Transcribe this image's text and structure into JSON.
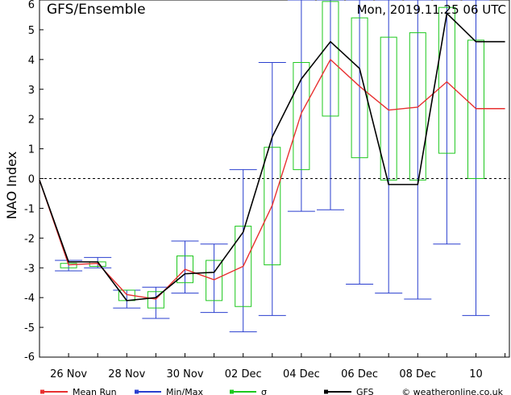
{
  "header": {
    "model_title": "GFS/Ensemble",
    "run_info": "Mon, 2019.11.25   06 UTC"
  },
  "legend": {
    "mean_run": "Mean Run",
    "min_max": "Min/Max",
    "sigma": "σ",
    "gfs": "GFS",
    "copyright": "© weatheronline.co.uk"
  },
  "colors": {
    "mean_run": "#e83030",
    "min_max": "#2a3fcf",
    "sigma": "#1ec81e",
    "gfs": "#000000"
  },
  "chart_data": {
    "type": "line",
    "title": "",
    "ylabel": "NAO Index",
    "xlabel": "",
    "ylim": [
      -6,
      6
    ],
    "xlim": [
      0,
      16.15
    ],
    "yticks": [
      -6,
      -5,
      -4,
      -3,
      -2,
      -1,
      0,
      1,
      2,
      3,
      4,
      5,
      6
    ],
    "xticks": [
      {
        "x": 1,
        "label": "26 Nov"
      },
      {
        "x": 3,
        "label": "28 Nov"
      },
      {
        "x": 5,
        "label": "30 Nov"
      },
      {
        "x": 7,
        "label": "02 Dec"
      },
      {
        "x": 9,
        "label": "04 Dec"
      },
      {
        "x": 11,
        "label": "06 Dec"
      },
      {
        "x": 13,
        "label": "08 Dec"
      },
      {
        "x": 15,
        "label": "10"
      }
    ],
    "x": [
      0,
      1,
      2,
      3,
      4,
      5,
      6,
      7,
      8,
      9,
      10,
      11,
      12,
      13,
      14,
      15,
      16
    ],
    "series": [
      {
        "name": "Mean Run",
        "values": [
          -0.05,
          -2.9,
          -2.85,
          -3.9,
          -4.05,
          -3.05,
          -3.4,
          -2.95,
          -0.9,
          2.2,
          4.0,
          3.1,
          2.3,
          2.4,
          3.25,
          2.35,
          2.35
        ]
      },
      {
        "name": "GFS",
        "values": [
          -0.05,
          -2.8,
          -2.8,
          -4.1,
          -4.0,
          -3.2,
          -3.15,
          -1.8,
          1.4,
          3.35,
          4.6,
          3.7,
          -0.2,
          -0.2,
          5.55,
          4.6,
          4.6
        ]
      }
    ],
    "min_max": [
      {
        "x": 1,
        "min": -3.1,
        "max": -2.75
      },
      {
        "x": 2,
        "min": -3.0,
        "max": -2.65
      },
      {
        "x": 3,
        "min": -4.35,
        "max": -3.75
      },
      {
        "x": 4,
        "min": -4.7,
        "max": -3.65
      },
      {
        "x": 5,
        "min": -3.85,
        "max": -2.1
      },
      {
        "x": 6,
        "min": -4.5,
        "max": -2.2
      },
      {
        "x": 7,
        "min": -5.15,
        "max": 0.3
      },
      {
        "x": 8,
        "min": -4.6,
        "max": 3.9
      },
      {
        "x": 9,
        "min": -1.1,
        "max": 6.0
      },
      {
        "x": 10,
        "min": -1.05,
        "max": 6.0
      },
      {
        "x": 11,
        "min": -3.55,
        "max": 6.0
      },
      {
        "x": 12,
        "min": -3.85,
        "max": 6.0
      },
      {
        "x": 13,
        "min": -4.05,
        "max": 6.0
      },
      {
        "x": 14,
        "min": -2.2,
        "max": 6.0
      },
      {
        "x": 15,
        "min": -4.6,
        "max": 6.0
      }
    ],
    "sigma": [
      {
        "x": 1,
        "low": -3.0,
        "high": -2.85
      },
      {
        "x": 2,
        "low": -2.95,
        "high": -2.8
      },
      {
        "x": 3,
        "low": -4.1,
        "high": -3.75
      },
      {
        "x": 4,
        "low": -4.35,
        "high": -3.8
      },
      {
        "x": 5,
        "low": -3.5,
        "high": -2.6
      },
      {
        "x": 6,
        "low": -4.1,
        "high": -2.75
      },
      {
        "x": 7,
        "low": -4.3,
        "high": -1.6
      },
      {
        "x": 8,
        "low": -2.9,
        "high": 1.05
      },
      {
        "x": 9,
        "low": 0.3,
        "high": 3.9
      },
      {
        "x": 10,
        "low": 2.1,
        "high": 5.95
      },
      {
        "x": 11,
        "low": 0.7,
        "high": 5.4
      },
      {
        "x": 12,
        "low": -0.05,
        "high": 4.75
      },
      {
        "x": 13,
        "low": -0.05,
        "high": 4.9
      },
      {
        "x": 14,
        "low": 0.85,
        "high": 5.75
      },
      {
        "x": 15,
        "low": 0.0,
        "high": 4.65
      }
    ],
    "zero_line": "dashed",
    "grid": false,
    "legend_position": "bottom"
  }
}
